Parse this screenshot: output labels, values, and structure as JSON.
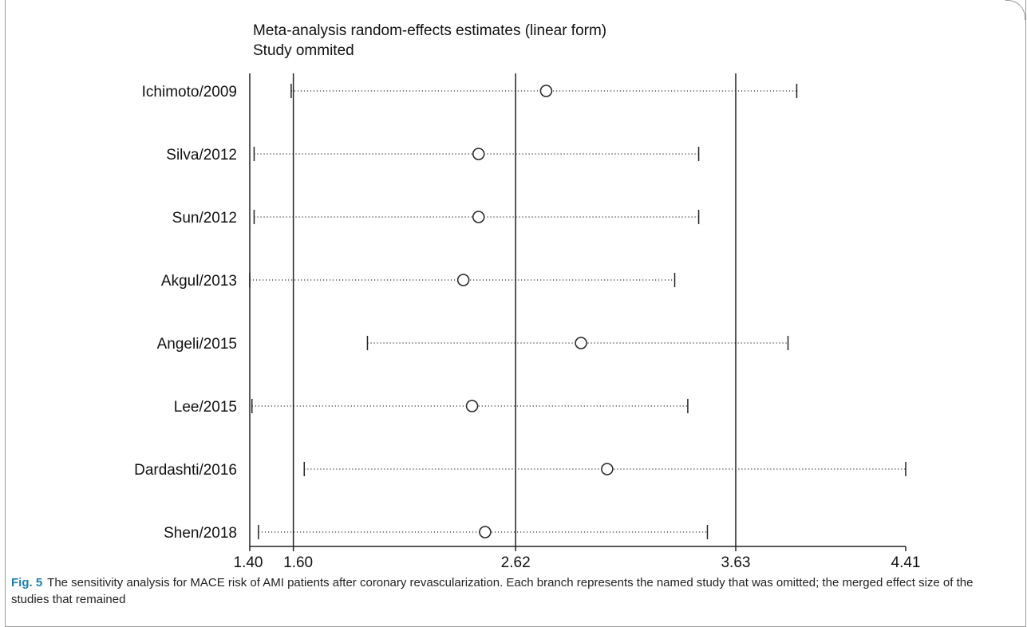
{
  "chart_data": {
    "type": "forest",
    "title_line1": "Meta-analysis random-effects estimates (linear form)",
    "title_line2": "Study ommited",
    "xlim": [
      1.4,
      4.41
    ],
    "xticks": [
      "1.40",
      "1.60",
      "2.62",
      "3.63",
      "4.41"
    ],
    "reference_lines": [
      1.6,
      2.62,
      3.63
    ],
    "studies": [
      {
        "name": "Ichimoto/2009",
        "estimate": 2.76,
        "lower": 1.59,
        "upper": 3.91
      },
      {
        "name": "Silva/2012",
        "estimate": 2.45,
        "lower": 1.42,
        "upper": 3.46
      },
      {
        "name": "Sun/2012",
        "estimate": 2.45,
        "lower": 1.42,
        "upper": 3.46
      },
      {
        "name": "Akgul/2013",
        "estimate": 2.38,
        "lower": 1.4,
        "upper": 3.35
      },
      {
        "name": "Angeli/2015",
        "estimate": 2.92,
        "lower": 1.94,
        "upper": 3.87
      },
      {
        "name": "Lee/2015",
        "estimate": 2.42,
        "lower": 1.41,
        "upper": 3.41
      },
      {
        "name": "Dardashti/2016",
        "estimate": 3.04,
        "lower": 1.65,
        "upper": 4.41
      },
      {
        "name": "Shen/2018",
        "estimate": 2.48,
        "lower": 1.44,
        "upper": 3.5
      }
    ]
  },
  "caption": {
    "label": "Fig. 5",
    "text": "The sensitivity analysis for MACE risk of AMI patients after coronary revascularization. Each branch represents the named study that was omitted; the merged effect size of the studies that remained"
  }
}
